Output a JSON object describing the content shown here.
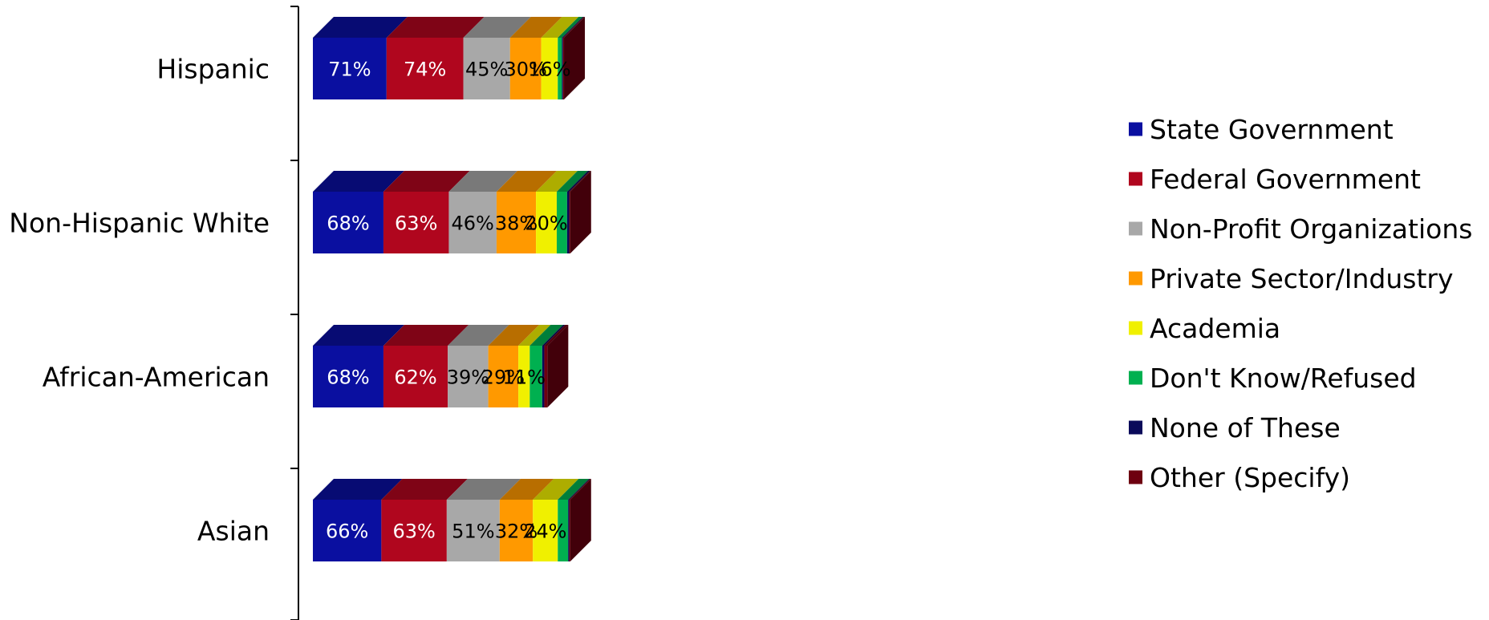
{
  "chart_data": {
    "type": "bar",
    "orientation": "horizontal",
    "stacked": true,
    "three_d": true,
    "categories": [
      "Hispanic",
      "Non-Hispanic White",
      "African-American",
      "Asian"
    ],
    "series": [
      {
        "name": "State Government",
        "color": "#0A0FA0",
        "values": [
          71,
          68,
          68,
          66
        ],
        "labels": [
          "71%",
          "68%",
          "68%",
          "66%"
        ]
      },
      {
        "name": "Federal Government",
        "color": "#B0061E",
        "values": [
          74,
          63,
          62,
          63
        ],
        "labels": [
          "74%",
          "63%",
          "62%",
          "63%"
        ]
      },
      {
        "name": "Non-Profit Organizations",
        "color": "#A8A8A8",
        "values": [
          45,
          46,
          39,
          51
        ],
        "labels": [
          "45%",
          "46%",
          "39%",
          "51%"
        ]
      },
      {
        "name": "Private Sector/Industry",
        "color": "#FF9900",
        "values": [
          30,
          38,
          29,
          32
        ],
        "labels": [
          "30%",
          "38%",
          "29%",
          "32%"
        ]
      },
      {
        "name": "Academia",
        "color": "#F0F000",
        "values": [
          16,
          20,
          11,
          24
        ],
        "labels": [
          "16%",
          "20%",
          "11%",
          "24%"
        ]
      },
      {
        "name": "Don't Know/Refused",
        "color": "#00B050",
        "values": [
          4,
          10,
          12,
          10
        ],
        "labels": [
          "",
          "",
          "",
          ""
        ]
      },
      {
        "name": "None of These",
        "color": "#0A0A5A",
        "values": [
          1,
          2,
          2,
          1
        ],
        "labels": [
          "",
          "",
          "",
          ""
        ]
      },
      {
        "name": "Other (Specify)",
        "color": "#6E0010",
        "values": [
          1,
          1,
          3,
          1
        ],
        "labels": [
          "",
          "",
          "",
          ""
        ]
      }
    ],
    "legend_position": "right",
    "grid": false
  }
}
